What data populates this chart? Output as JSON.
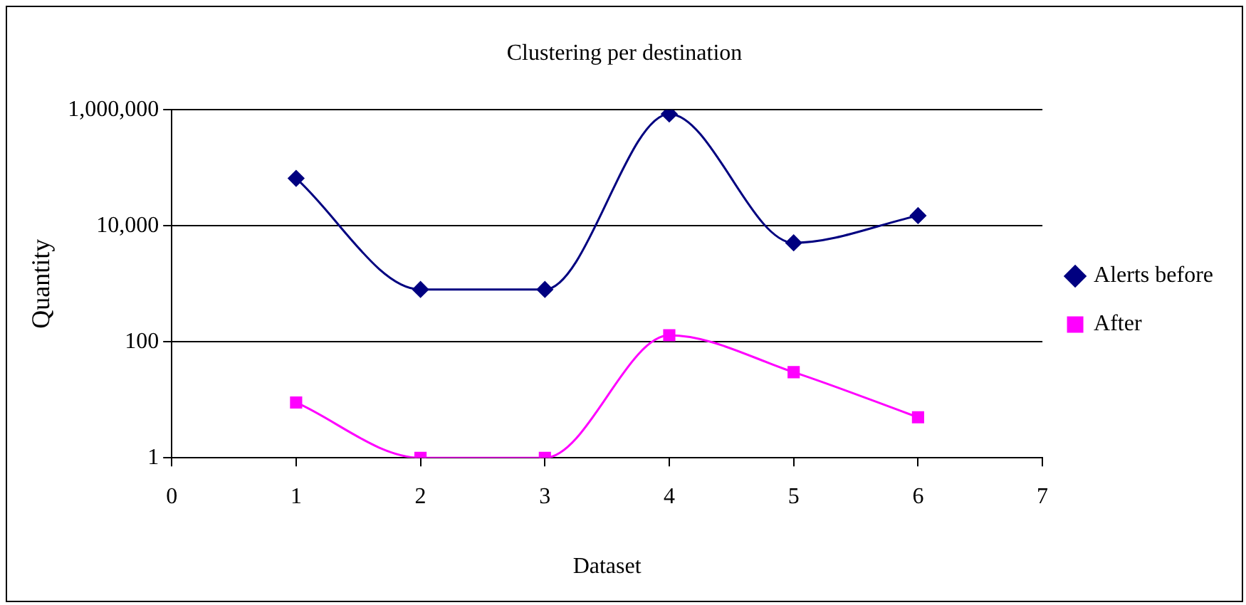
{
  "chart_data": {
    "type": "line",
    "title": "Clustering per destination",
    "xlabel": "Dataset",
    "ylabel": "Quantity",
    "x": [
      1,
      2,
      3,
      4,
      5,
      6
    ],
    "series": [
      {
        "name": "Alerts before",
        "color": "#000080",
        "marker": "diamond",
        "values": [
          66000,
          800,
          800,
          850000,
          5100,
          15000
        ]
      },
      {
        "name": "After",
        "color": "#ff00ff",
        "marker": "square",
        "values": [
          9,
          1,
          1,
          130,
          30,
          5
        ]
      }
    ],
    "log": "y",
    "xlim": [
      0,
      7
    ],
    "xticks": [
      0,
      1,
      2,
      3,
      4,
      5,
      6,
      7
    ],
    "ylim": [
      1,
      1000000
    ],
    "yticks": [
      1,
      100,
      {
        "value": 10000,
        "label": "10,000"
      },
      {
        "value": 1000000,
        "label": "1,000,000"
      }
    ],
    "grid": "y",
    "legend": "right"
  }
}
